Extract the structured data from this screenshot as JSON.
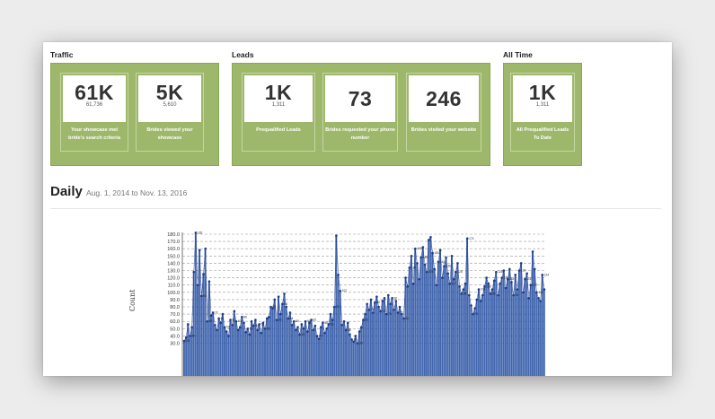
{
  "traffic": {
    "title": "Traffic",
    "cards": [
      {
        "value": "61K",
        "exact": "61,736",
        "caption": "Your showcase met bride's search criteria"
      },
      {
        "value": "5K",
        "exact": "5,610",
        "caption": "Brides viewed your showcase"
      }
    ]
  },
  "leads": {
    "title": "Leads",
    "cards": [
      {
        "value": "1K",
        "exact": "1,311",
        "caption": "Prequalified Leads"
      },
      {
        "value": "73",
        "exact": "",
        "caption": "Brides requested your phone number"
      },
      {
        "value": "246",
        "exact": "",
        "caption": "Brides visited your website"
      }
    ]
  },
  "alltime": {
    "title": "All Time",
    "cards": [
      {
        "value": "1K",
        "exact": "1,311",
        "caption": "All Prequalified Leads To Date"
      }
    ]
  },
  "daily": {
    "title": "Daily",
    "range": "Aug. 1, 2014 to Nov. 13, 2016"
  },
  "colors": {
    "green": "#9db86a",
    "bar": "#2f56a6",
    "point": "#1d3b88"
  },
  "chart_data": {
    "type": "bar",
    "title": "",
    "xlabel": "",
    "ylabel": "Count",
    "ylim": [
      30,
      185
    ],
    "yticks": [
      "30.0",
      "40.0",
      "50.0",
      "60.0",
      "70.0",
      "80.0",
      "90.0",
      "100.0",
      "110.0",
      "120.0",
      "130.0",
      "140.0",
      "150.0",
      "160.0",
      "170.0",
      "180.0"
    ],
    "grid": true,
    "values": [
      33,
      38,
      56,
      40,
      52,
      128,
      182,
      110,
      158,
      95,
      125,
      160,
      60,
      115,
      68,
      72,
      55,
      48,
      64,
      58,
      70,
      52,
      46,
      40,
      62,
      55,
      74,
      60,
      48,
      52,
      66,
      58,
      45,
      50,
      42,
      60,
      54,
      62,
      48,
      56,
      44,
      58,
      50,
      64,
      66,
      80,
      78,
      90,
      62,
      94,
      70,
      84,
      98,
      80,
      64,
      72,
      55,
      60,
      48,
      52,
      42,
      56,
      50,
      60,
      46,
      58,
      62,
      48,
      54,
      40,
      36,
      52,
      58,
      44,
      50,
      56,
      70,
      62,
      80,
      178,
      124,
      102,
      55,
      60,
      48,
      58,
      42,
      35,
      32,
      40,
      30,
      46,
      52,
      62,
      70,
      84,
      76,
      90,
      72,
      86,
      94,
      80,
      74,
      88,
      92,
      70,
      96,
      84,
      92,
      76,
      88,
      72,
      80,
      70,
      64,
      120,
      108,
      134,
      150,
      112,
      160,
      140,
      118,
      148,
      162,
      138,
      128,
      172,
      176,
      154,
      132,
      110,
      142,
      158,
      120,
      136,
      148,
      126,
      112,
      150,
      118,
      128,
      140,
      108,
      98,
      104,
      112,
      174,
      96,
      82,
      70,
      78,
      90,
      104,
      88,
      96,
      108,
      120,
      112,
      98,
      104,
      116,
      128,
      96,
      112,
      120,
      130,
      106,
      118,
      132,
      114,
      96,
      124,
      104,
      130,
      140,
      100,
      118,
      126,
      92,
      110,
      156,
      132,
      100,
      92,
      88,
      124,
      104
    ]
  }
}
